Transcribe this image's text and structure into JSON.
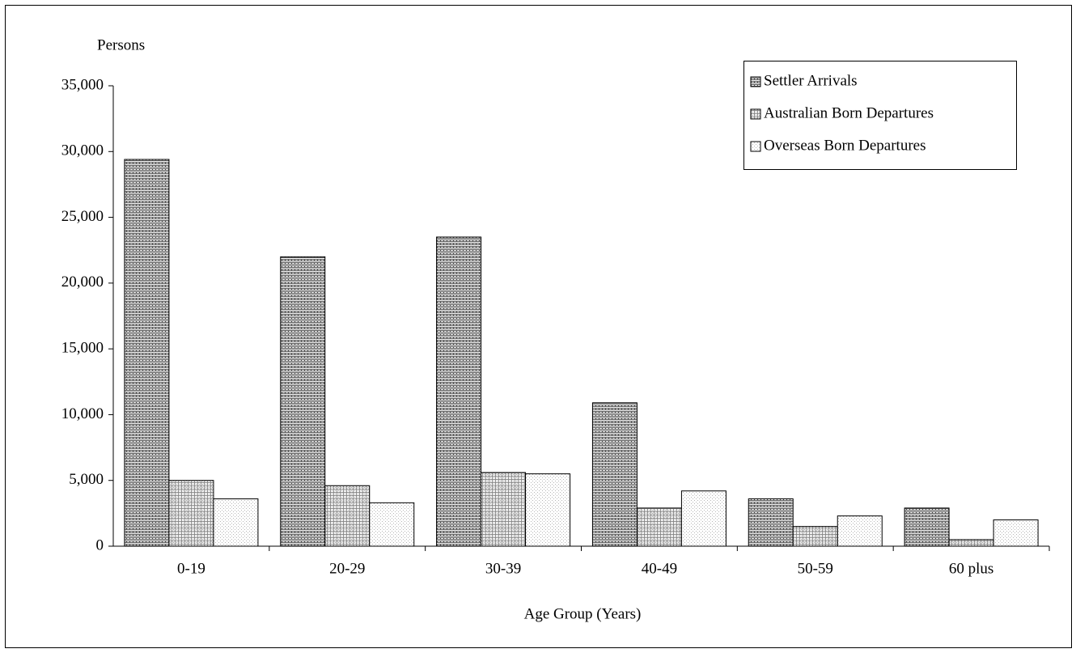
{
  "chart_data": {
    "type": "bar",
    "y_label": "Persons",
    "x_label": "Age Group (Years)",
    "categories": [
      "0-19",
      "20-29",
      "30-39",
      "40-49",
      "50-59",
      "60 plus"
    ],
    "series": [
      {
        "name": "Settler Arrivals",
        "color": "#555555",
        "values": [
          29400,
          22000,
          23500,
          10900,
          3600,
          2900
        ]
      },
      {
        "name": "Australian Born Departures",
        "color": "#8a8a8a",
        "values": [
          5000,
          4600,
          5600,
          2900,
          1500,
          500
        ]
      },
      {
        "name": "Overseas Born Departures",
        "color": "#b5b5b5",
        "values": [
          3600,
          3300,
          5500,
          4200,
          2300,
          2000
        ]
      }
    ],
    "ylim": [
      0,
      35000
    ],
    "yticks": [
      0,
      {
        "value": 5000,
        "label": "5,000"
      },
      {
        "value": 10000,
        "label": "10,000"
      },
      {
        "value": 15000,
        "label": "15,000"
      },
      {
        "value": 20000,
        "label": "20,000"
      },
      {
        "value": 25000,
        "label": "25,000"
      },
      {
        "value": 30000,
        "label": "30,000"
      },
      {
        "value": 35000,
        "label": "35,000"
      }
    ],
    "grid": false,
    "legend": "top-right"
  }
}
